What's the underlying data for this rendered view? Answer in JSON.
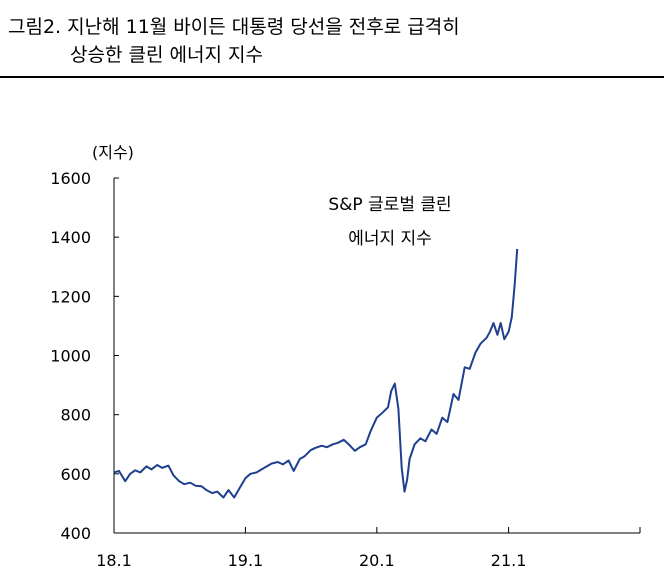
{
  "header": {
    "title_line1": "그림2. 지난해 11월 바이든 대통령 당선을 전후로 급격히",
    "title_line2": "상승한 클린 에너지 지수"
  },
  "chart_data": {
    "type": "line",
    "title": "",
    "xlabel": "",
    "ylabel": "(지수)",
    "ylim": [
      400,
      1600
    ],
    "yticks": [
      400,
      600,
      800,
      1000,
      1200,
      1400,
      1600
    ],
    "xlim": [
      "2018-01",
      "2022-01"
    ],
    "xticks": [
      "18.1",
      "19.1",
      "20.1",
      "21.1"
    ],
    "grid": false,
    "legend": "none",
    "annotation": [
      "S&P 글로벌 클린",
      "에너지 지수"
    ],
    "colors": {
      "line": "#1f3f8f",
      "axis": "#000000"
    },
    "series": [
      {
        "x": [
          "2018-01",
          "2018-01-15",
          "2018-02",
          "2018-02-15",
          "2018-03",
          "2018-03-15",
          "2018-04",
          "2018-04-15",
          "2018-05",
          "2018-05-15",
          "2018-06",
          "2018-06-15",
          "2018-07",
          "2018-07-15",
          "2018-08",
          "2018-08-15",
          "2018-09",
          "2018-09-15",
          "2018-10",
          "2018-10-15",
          "2018-11",
          "2018-11-15",
          "2018-12",
          "2018-12-15",
          "2019-01",
          "2019-01-15",
          "2019-02",
          "2019-02-15",
          "2019-03",
          "2019-03-15",
          "2019-04",
          "2019-04-15",
          "2019-05",
          "2019-05-15",
          "2019-06",
          "2019-06-15",
          "2019-07",
          "2019-07-15",
          "2019-08",
          "2019-08-15",
          "2019-09",
          "2019-09-15",
          "2019-10",
          "2019-10-15",
          "2019-11",
          "2019-11-15",
          "2019-12",
          "2019-12-15",
          "2020-01",
          "2020-01-15",
          "2020-02",
          "2020-02-10",
          "2020-02-20",
          "2020-03",
          "2020-03-10",
          "2020-03-18",
          "2020-03-25",
          "2020-04",
          "2020-04-15",
          "2020-05",
          "2020-05-15",
          "2020-06",
          "2020-06-15",
          "2020-07",
          "2020-07-15",
          "2020-08",
          "2020-08-15",
          "2020-09",
          "2020-09-15",
          "2020-10",
          "2020-10-15",
          "2020-11",
          "2020-11-10",
          "2020-11-20",
          "2020-12",
          "2020-12-10",
          "2020-12-20",
          "2021-01",
          "2021-01-10",
          "2021-01-18",
          "2021-01-25"
        ],
        "values": [
          605,
          610,
          575,
          600,
          612,
          605,
          625,
          615,
          630,
          620,
          628,
          595,
          575,
          565,
          570,
          560,
          558,
          545,
          535,
          540,
          520,
          545,
          520,
          550,
          585,
          600,
          605,
          615,
          625,
          635,
          640,
          632,
          645,
          610,
          650,
          660,
          680,
          688,
          695,
          690,
          700,
          705,
          715,
          700,
          678,
          690,
          700,
          745,
          790,
          805,
          825,
          880,
          905,
          820,
          620,
          540,
          580,
          650,
          700,
          720,
          710,
          750,
          735,
          790,
          775,
          870,
          850,
          960,
          955,
          1010,
          1040,
          1060,
          1080,
          1110,
          1070,
          1110,
          1055,
          1080,
          1130,
          1240,
          1360
        ]
      }
    ]
  }
}
